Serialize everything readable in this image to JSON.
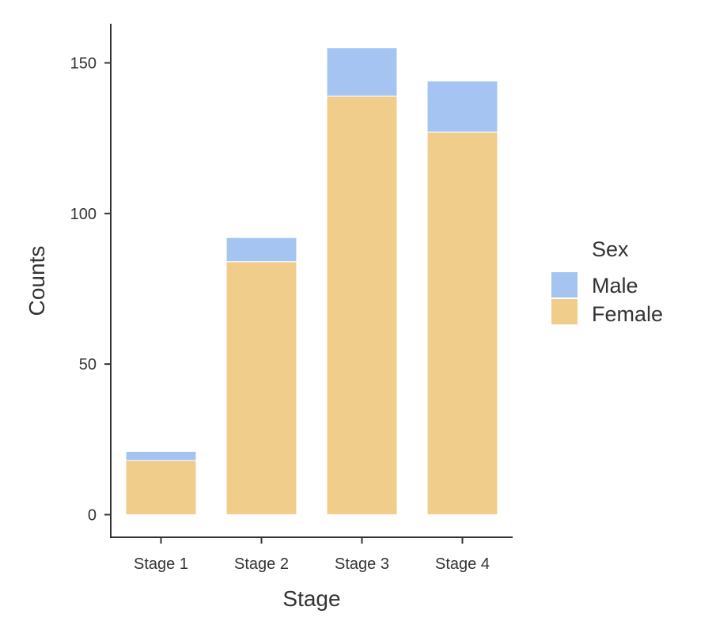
{
  "chart_data": {
    "type": "bar",
    "stacked": true,
    "categories": [
      "Stage 1",
      "Stage 2",
      "Stage 3",
      "Stage 4"
    ],
    "series": [
      {
        "name": "Female",
        "values": [
          18,
          84,
          139,
          127
        ],
        "color": "#f0cd8b"
      },
      {
        "name": "Male",
        "values": [
          3,
          8,
          16,
          17
        ],
        "color": "#a6c4f2"
      }
    ],
    "xlabel": "Stage",
    "ylabel": "Counts",
    "ylim": [
      -7.5,
      163
    ],
    "yticks": [
      0,
      50,
      100,
      150
    ],
    "grid": false,
    "legend": {
      "title": "Sex",
      "position": "right",
      "entries": [
        {
          "label": "Male",
          "color": "#a6c4f2"
        },
        {
          "label": "Female",
          "color": "#f0cd8b"
        }
      ]
    }
  }
}
